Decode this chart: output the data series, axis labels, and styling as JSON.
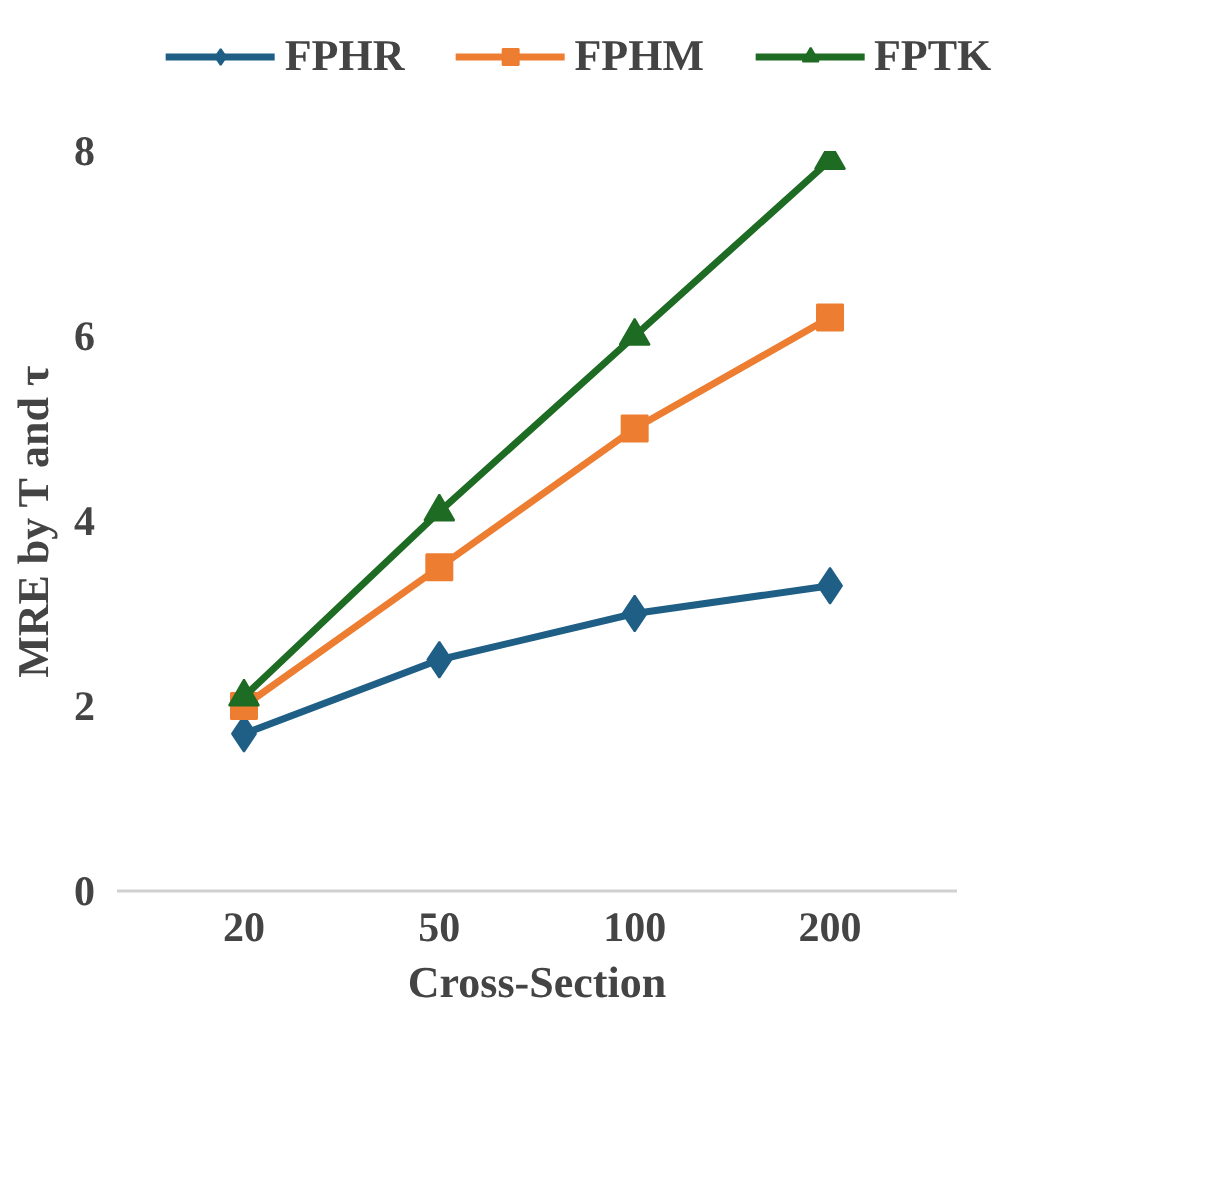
{
  "chart_data": {
    "type": "line",
    "xlabel": "Cross-Section",
    "ylabel": "MRE by T and τ",
    "categories": [
      "20",
      "50",
      "100",
      "200"
    ],
    "series": [
      {
        "name": "FPHR",
        "color": "#1f5f86",
        "marker": "diamond",
        "values": [
          1.7,
          2.5,
          3.0,
          3.3
        ]
      },
      {
        "name": "FPHM",
        "color": "#ed7d31",
        "marker": "square",
        "values": [
          2.0,
          3.5,
          5.0,
          6.2
        ]
      },
      {
        "name": "FPTK",
        "color": "#1e6b24",
        "marker": "triangle",
        "values": [
          2.1,
          4.1,
          6.0,
          7.9
        ]
      }
    ],
    "ylim": [
      0,
      8
    ],
    "yticks": [
      0,
      2,
      4,
      6,
      8
    ],
    "grid": false,
    "legend": "top"
  }
}
